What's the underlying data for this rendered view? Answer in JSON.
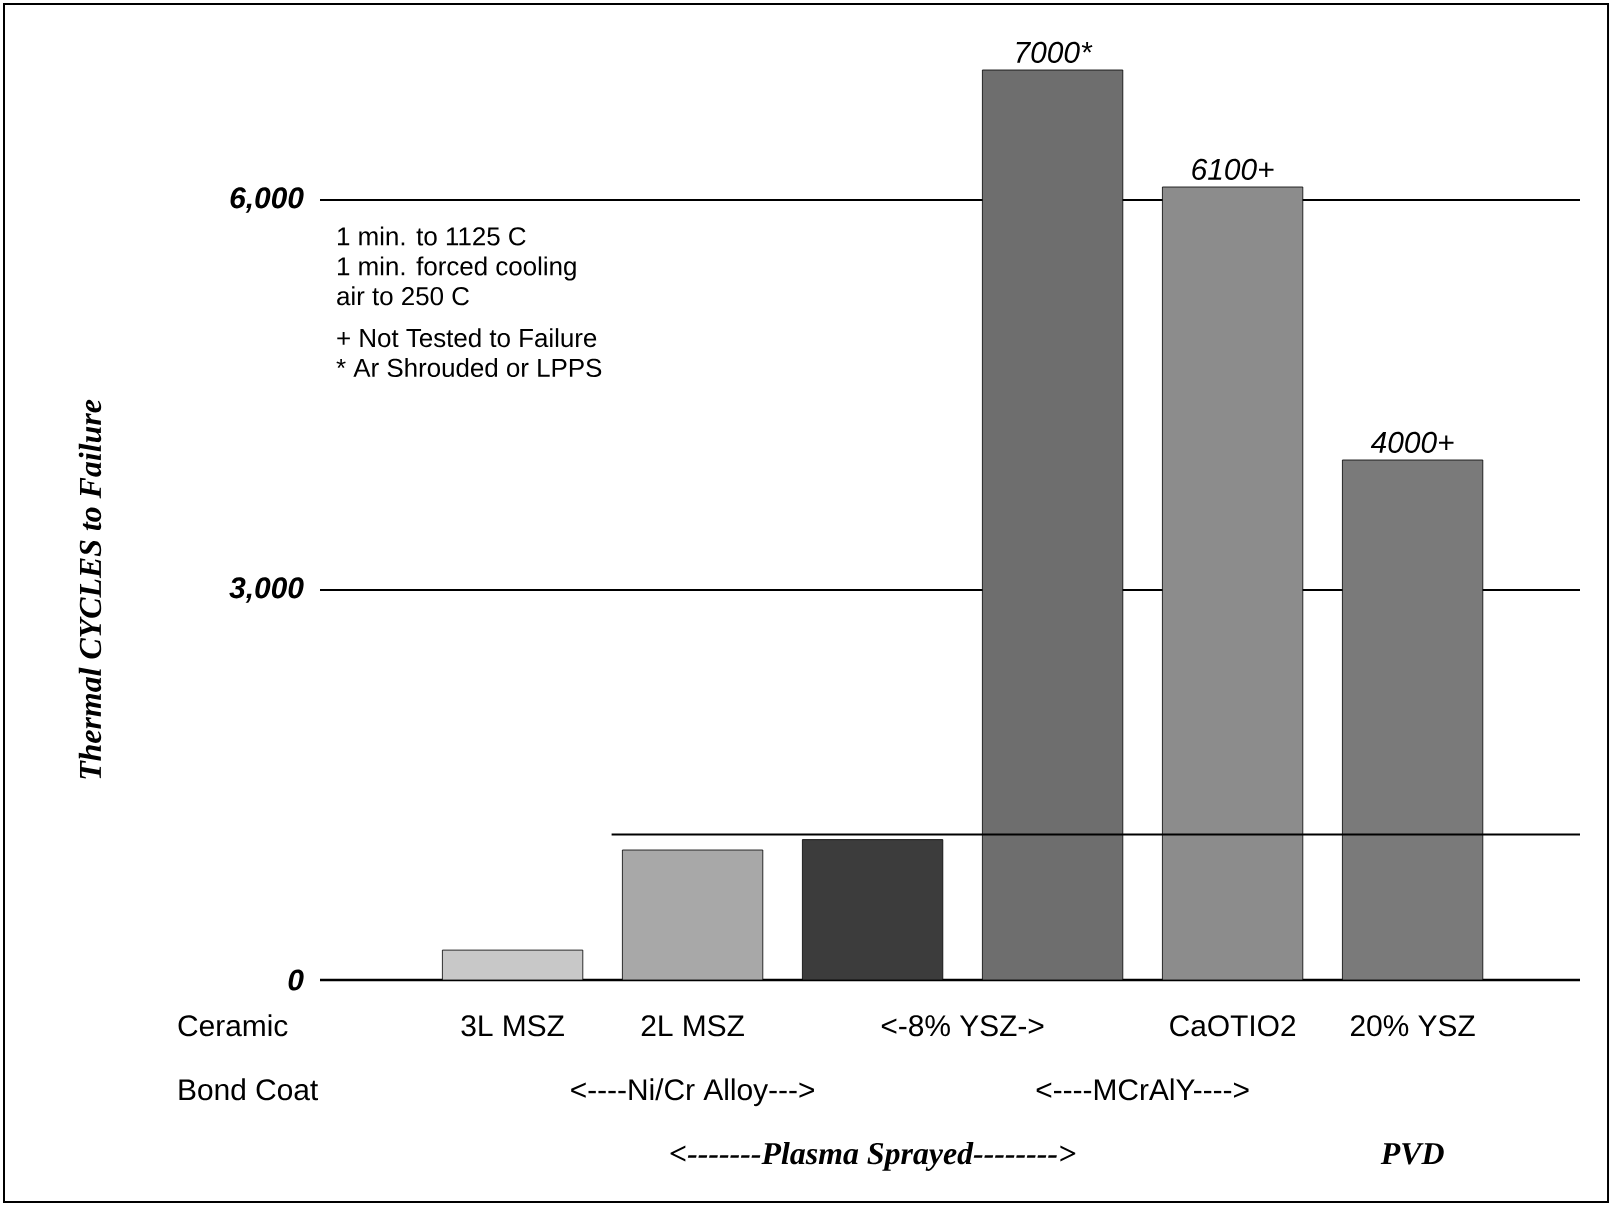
{
  "chart_data": {
    "type": "bar",
    "ylabel": "Thermal CYCLES to Failure",
    "xlabel": "Ceramic",
    "categories": [
      "3L MSZ",
      "2L MSZ",
      "<-8% YSZ->",
      null,
      "CaOTIO2",
      "20% YSZ"
    ],
    "values": [
      230,
      1000,
      1080,
      7000,
      6100,
      4000
    ],
    "colors": [
      "#c8c8c8",
      "#a8a8a8",
      "#3c3c3c",
      "#6e6e6e",
      "#8c8c8c",
      "#7a7a7a"
    ],
    "value_labels": [
      null,
      null,
      null,
      "7000*",
      "6100+",
      "4000+"
    ],
    "ylim": [
      0,
      7000
    ],
    "yticks": [
      {
        "value": 0,
        "label": "0"
      },
      {
        "value": 3000,
        "label": "3,000"
      },
      {
        "value": 6000,
        "label": "6,000"
      }
    ],
    "grid": "y",
    "ref_lines": [
      {
        "axis": "y",
        "value": 1120,
        "label": null
      }
    ],
    "annotations": [
      "1 min. to 1125 C",
      "1 min. forced cooling",
      "air to 250 C",
      "+ Not Tested to Failure",
      "* Ar Shrouded or LPPS",
      "Bond Coat",
      "<----Ni/Cr Alloy--->",
      "<----MCrAlY---->",
      "<-------Plasma Sprayed-------->",
      "PVD"
    ]
  }
}
